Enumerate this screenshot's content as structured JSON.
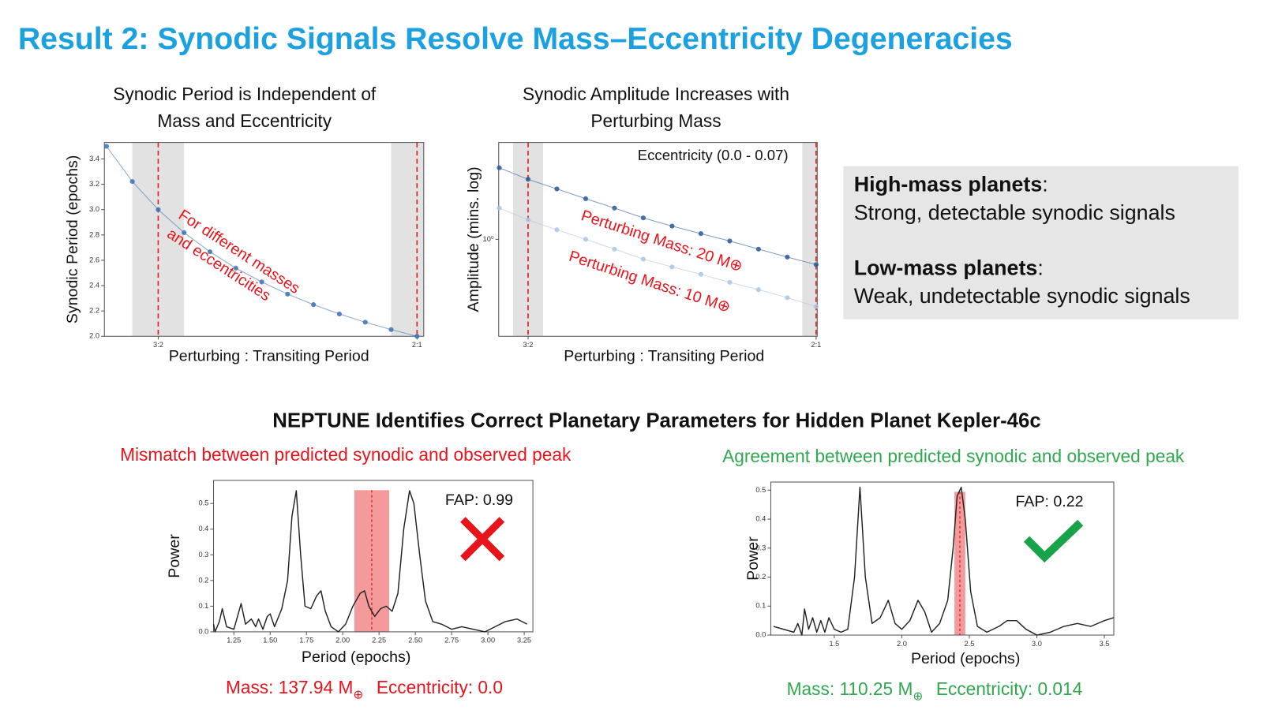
{
  "title": "Result 2: Synodic Signals Resolve Mass–Eccentricity Degeneracies",
  "section_title": "NEPTUNE Identifies Correct Planetary Parameters for Hidden Planet Kepler-46c",
  "info_box": [
    {
      "heading": "High-mass planets",
      "punct": ":",
      "text": "Strong, detectable synodic signals"
    },
    {
      "heading": "Low-mass planets",
      "punct": ":",
      "text": "Weak, undetectable synodic signals"
    }
  ],
  "chart_data": [
    {
      "type": "scatter",
      "title": [
        "Synodic Period is Independent of",
        "Mass and Eccentricity"
      ],
      "xlabel": "Perturbing : Transiting Period",
      "ylabel": "Synodic Period (epochs)",
      "annotation": [
        "For different masses",
        "and eccentricities"
      ],
      "x": [
        1.4,
        1.45,
        1.5,
        1.55,
        1.6,
        1.65,
        1.7,
        1.75,
        1.8,
        1.85,
        1.9,
        1.95,
        2.0
      ],
      "values": [
        3.5,
        3.222,
        3.0,
        2.818,
        2.667,
        2.538,
        2.429,
        2.333,
        2.25,
        2.176,
        2.111,
        2.053,
        2.0
      ],
      "color": "#3d72b4",
      "xlim": [
        1.396,
        2.013
      ],
      "xticks": [
        {
          "value": 1.5,
          "label": "3:2"
        },
        {
          "value": 2.0,
          "label": "2:1"
        }
      ],
      "ylim": [
        2.0,
        3.53
      ],
      "yticks": [
        {
          "value": 2.0,
          "label": "2.0"
        },
        2.2,
        2.4,
        2.6,
        2.8,
        {
          "value": 3.0,
          "label": "3.0"
        },
        3.2,
        3.4
      ],
      "shaded_regions": [
        [
          1.45,
          1.55
        ],
        [
          1.95,
          2.013
        ]
      ],
      "vlines": [
        1.5,
        2.0
      ],
      "vline_color": "#e02020"
    },
    {
      "type": "scatter",
      "title": [
        "Synodic Amplitude Increases with",
        "Perturbing Mass"
      ],
      "xlabel": "Perturbing : Transiting Period",
      "ylabel": "Amplitude (mins. log)",
      "annotation": [
        "Eccentricity (0.0 - 0.07)"
      ],
      "log_y": true,
      "x": [
        1.45,
        1.5,
        1.55,
        1.6,
        1.65,
        1.7,
        1.75,
        1.8,
        1.85,
        1.9,
        1.95,
        2.0
      ],
      "series": [
        {
          "name": "Perturbing Mass: 20 M⊕",
          "color": "#2a5a9a",
          "values": [
            2.34,
            2.04,
            1.82,
            1.62,
            1.45,
            1.29,
            1.17,
            1.07,
            0.98,
            0.89,
            0.81,
            0.74
          ]
        },
        {
          "name": "Perturbing Mass: 10 M⊕",
          "color": "#aac7e4",
          "values": [
            1.45,
            1.26,
            1.12,
            1.0,
            0.89,
            0.79,
            0.72,
            0.66,
            0.6,
            0.55,
            0.5,
            0.45
          ]
        }
      ],
      "xlim": [
        1.449,
        2.002
      ],
      "xticks": [
        {
          "value": 1.5,
          "label": "3:2"
        },
        {
          "value": 2.0,
          "label": "2:1"
        }
      ],
      "ylim": [
        0.316,
        3.16
      ],
      "yticks": [
        {
          "value": 1,
          "label": "10⁰"
        }
      ],
      "shaded_regions": [
        [
          1.474,
          1.526
        ],
        [
          1.976,
          2.002
        ]
      ],
      "vlines": [
        1.5,
        2.0
      ],
      "vline_color": "#e02020"
    },
    {
      "type": "line",
      "subtitle": "Mismatch between predicted synodic and observed peak",
      "subtitle_color": "#e8141c",
      "xlabel": "Period (epochs)",
      "ylabel": "Power",
      "fap": "FAP: 0.99",
      "verdict": "mismatch",
      "caption": {
        "mass": "Mass: 137.94 M",
        "symbol": "⊕",
        "eccentricity": "Eccentricity: 0.0"
      },
      "x": [
        1.11,
        1.12,
        1.15,
        1.17,
        1.2,
        1.25,
        1.28,
        1.3,
        1.33,
        1.37,
        1.4,
        1.42,
        1.45,
        1.48,
        1.5,
        1.53,
        1.58,
        1.62,
        1.65,
        1.68,
        1.71,
        1.74,
        1.78,
        1.82,
        1.85,
        1.88,
        1.92,
        1.97,
        2.02,
        2.07,
        2.12,
        2.15,
        2.18,
        2.22,
        2.26,
        2.3,
        2.34,
        2.38,
        2.42,
        2.46,
        2.49,
        2.53,
        2.57,
        2.62,
        2.68,
        2.75,
        2.82,
        2.9,
        2.98,
        3.05,
        3.12,
        3.2,
        3.27
      ],
      "values": [
        0.03,
        0.0,
        0.04,
        0.09,
        0.02,
        0.01,
        0.07,
        0.11,
        0.03,
        0.05,
        0.02,
        0.05,
        0.01,
        0.06,
        0.07,
        0.02,
        0.09,
        0.2,
        0.45,
        0.55,
        0.3,
        0.1,
        0.09,
        0.14,
        0.16,
        0.08,
        0.02,
        0.0,
        0.03,
        0.1,
        0.15,
        0.16,
        0.1,
        0.06,
        0.09,
        0.1,
        0.08,
        0.15,
        0.4,
        0.55,
        0.5,
        0.3,
        0.12,
        0.04,
        0.03,
        0.01,
        0.02,
        0.01,
        0.0,
        0.02,
        0.04,
        0.05,
        0.03
      ],
      "color": "#222222",
      "xlim": [
        1.11,
        3.31
      ],
      "xticks": [
        1.25,
        {
          "value": 1.5,
          "label": "1.50"
        },
        1.75,
        {
          "value": 2.0,
          "label": "2.00"
        },
        2.25,
        {
          "value": 2.5,
          "label": "2.50"
        },
        2.75,
        {
          "value": 3.0,
          "label": "3.00"
        },
        3.25
      ],
      "ylim": [
        0,
        0.59
      ],
      "yticks": [
        {
          "value": 0,
          "label": "0.0"
        },
        0.1,
        0.2,
        0.3,
        0.4,
        0.5
      ],
      "highlight": [
        2.08,
        2.32
      ],
      "marker_line": 2.2,
      "highlight_color": "#f59a9a"
    },
    {
      "type": "line",
      "subtitle": "Agreement between predicted synodic and observed peak",
      "subtitle_color": "#2fa84f",
      "xlabel": "Period (epochs)",
      "ylabel": "Power",
      "fap": "FAP: 0.22",
      "verdict": "match",
      "caption": {
        "mass": "Mass: 110.25 M",
        "symbol": "⊕",
        "eccentricity": "Eccentricity: 0.014"
      },
      "x": [
        1.05,
        1.2,
        1.23,
        1.26,
        1.28,
        1.31,
        1.34,
        1.37,
        1.4,
        1.43,
        1.46,
        1.5,
        1.55,
        1.6,
        1.65,
        1.69,
        1.73,
        1.78,
        1.84,
        1.9,
        1.95,
        2.0,
        2.06,
        2.12,
        2.17,
        2.22,
        2.28,
        2.34,
        2.38,
        2.41,
        2.44,
        2.47,
        2.51,
        2.56,
        2.63,
        2.72,
        2.78,
        2.85,
        2.92,
        3.0,
        3.1,
        3.2,
        3.3,
        3.4,
        3.5,
        3.57
      ],
      "values": [
        0.03,
        0.01,
        0.04,
        0.0,
        0.09,
        0.02,
        0.06,
        0.01,
        0.05,
        0.01,
        0.06,
        0.02,
        0.01,
        0.02,
        0.2,
        0.51,
        0.2,
        0.04,
        0.06,
        0.12,
        0.04,
        0.02,
        0.05,
        0.12,
        0.08,
        0.01,
        0.04,
        0.12,
        0.3,
        0.48,
        0.51,
        0.4,
        0.15,
        0.03,
        0.01,
        0.03,
        0.05,
        0.05,
        0.02,
        0.0,
        0.01,
        0.03,
        0.04,
        0.03,
        0.05,
        0.06
      ],
      "color": "#222222",
      "xlim": [
        1.03,
        3.57
      ],
      "xticks": [
        1.5,
        {
          "value": 2.0,
          "label": "2.0"
        },
        2.5,
        {
          "value": 3.0,
          "label": "3.0"
        },
        3.5
      ],
      "ylim": [
        0,
        0.528
      ],
      "yticks": [
        {
          "value": 0,
          "label": "0.0"
        },
        0.1,
        0.2,
        0.3,
        0.4,
        0.5
      ],
      "highlight": [
        2.39,
        2.47
      ],
      "marker_line": 2.43,
      "highlight_color": "#f59a9a"
    }
  ]
}
